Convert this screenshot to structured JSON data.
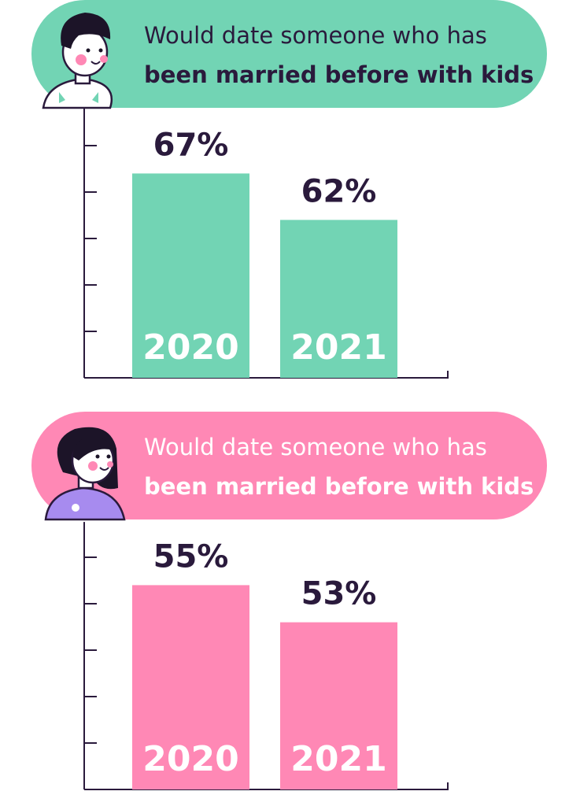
{
  "chart_data": [
    {
      "type": "bar",
      "title_lines": [
        "Would date someone who has",
        "been married before with kids"
      ],
      "categories": [
        "2020",
        "2021"
      ],
      "values": [
        67,
        62
      ],
      "value_labels": [
        "67%",
        "62%"
      ],
      "color": "#72d4b4",
      "title_color": "#2a1a3c",
      "ylim": [
        45,
        74
      ],
      "yticks": [
        50,
        55,
        60,
        65,
        70
      ]
    },
    {
      "type": "bar",
      "title_lines": [
        "Would date someone who has",
        "been married before with kids"
      ],
      "categories": [
        "2020",
        "2021"
      ],
      "values": [
        55,
        53
      ],
      "value_labels": [
        "55%",
        "53%"
      ],
      "color": "#ff88b5",
      "title_color": "#ffffff",
      "ylim": [
        44,
        58.4
      ],
      "yticks": [
        46.5,
        49,
        51.5,
        54,
        56.5
      ]
    }
  ]
}
